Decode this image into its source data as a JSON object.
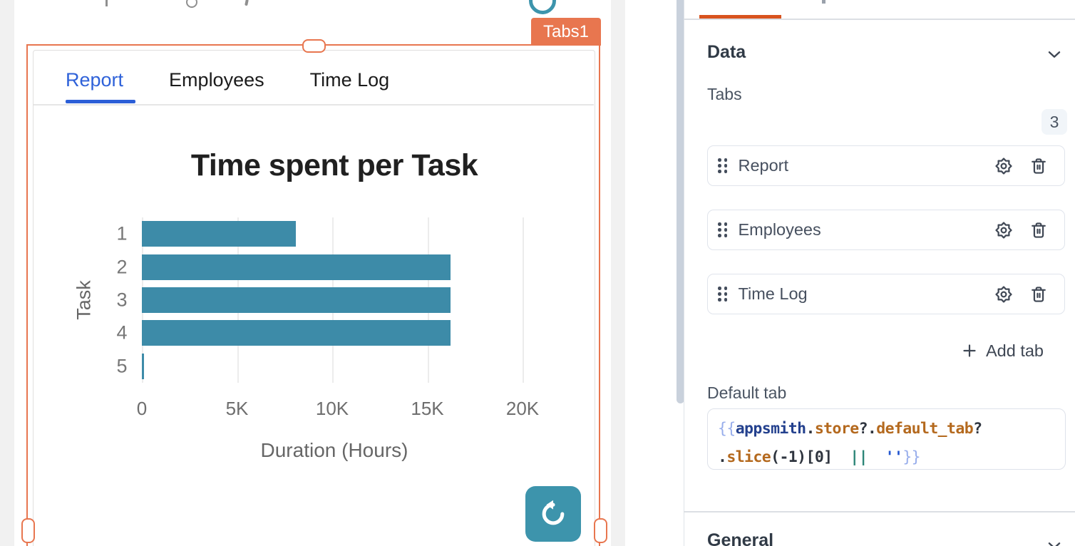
{
  "canvas": {
    "widget_badge": "Tabs1",
    "tabs": [
      {
        "label": "Report",
        "active": true
      },
      {
        "label": "Employees",
        "active": false
      },
      {
        "label": "Time Log",
        "active": false
      }
    ]
  },
  "chart_data": {
    "type": "bar",
    "orientation": "horizontal",
    "title": "Time spent per Task",
    "xlabel": "Duration (Hours)",
    "ylabel": "Task",
    "categories": [
      "1",
      "2",
      "3",
      "4",
      "5"
    ],
    "values": [
      8100,
      16200,
      16200,
      16200,
      100
    ],
    "xlim": [
      0,
      20000
    ],
    "xticks": [
      {
        "value": 0,
        "label": "0"
      },
      {
        "value": 5000,
        "label": "5K"
      },
      {
        "value": 10000,
        "label": "10K"
      },
      {
        "value": 15000,
        "label": "15K"
      },
      {
        "value": 20000,
        "label": "20K"
      }
    ],
    "bar_color": "#3D8BA8",
    "grid": true,
    "legend": false
  },
  "property_pane": {
    "data_section": {
      "label": "Data"
    },
    "tabs_field": {
      "label": "Tabs",
      "count": "3"
    },
    "tab_items": [
      {
        "label": "Report"
      },
      {
        "label": "Employees"
      },
      {
        "label": "Time Log"
      }
    ],
    "add_tab": {
      "label": "Add tab"
    },
    "default_tab": {
      "label": "Default tab",
      "value": "{{appsmith.store?.default_tab?.slice(-1)[0] || ''}}",
      "line1_tokens": [
        {
          "text": "{{",
          "type": "brace"
        },
        {
          "text": "appsmith",
          "type": "keyword"
        },
        {
          "text": ".",
          "type": "punct"
        },
        {
          "text": "store",
          "type": "variable"
        },
        {
          "text": "?.",
          "type": "punct"
        },
        {
          "text": "default_tab",
          "type": "variable"
        },
        {
          "text": "?",
          "type": "punct"
        }
      ],
      "line2_tokens": [
        {
          "text": ".",
          "type": "punct"
        },
        {
          "text": "slice",
          "type": "variable"
        },
        {
          "text": "(-1)[0]",
          "type": "punct"
        },
        {
          "text": "  ",
          "type": "punct"
        },
        {
          "text": "||",
          "type": "operator"
        },
        {
          "text": "  ",
          "type": "punct"
        },
        {
          "text": "''",
          "type": "string"
        },
        {
          "text": "}}",
          "type": "brace"
        }
      ]
    },
    "general_section": {
      "label": "General"
    }
  },
  "colors": {
    "selection_orange": "#E8764F",
    "pane_accent_orange": "#D8531E",
    "bar_teal": "#3D8BA8",
    "button_teal": "#3D94AC",
    "active_tab_blue": "#2F62D9"
  }
}
